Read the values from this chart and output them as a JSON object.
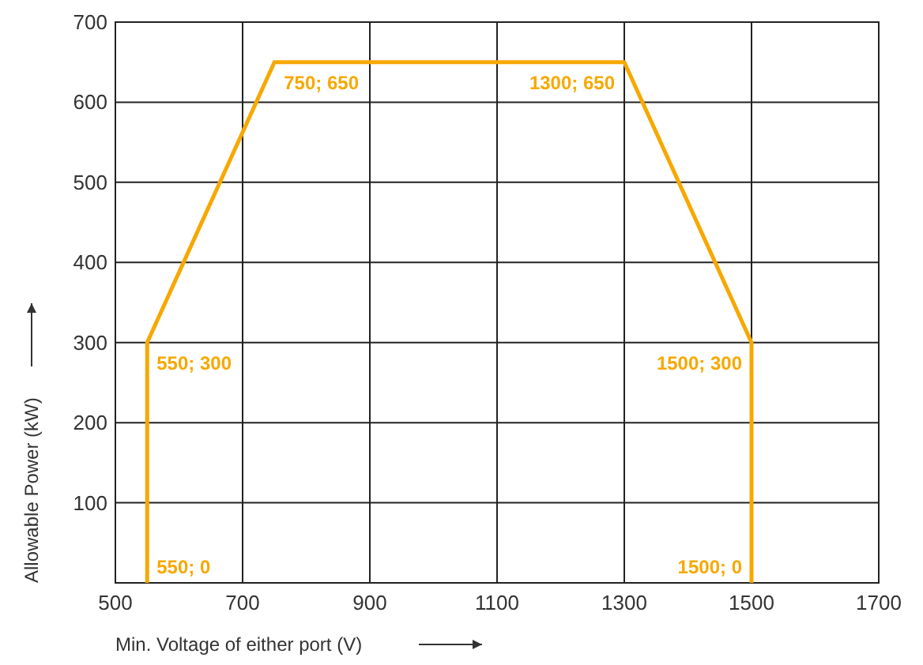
{
  "chart_data": {
    "type": "line",
    "xlabel": "Min. Voltage of either port (V)",
    "ylabel": "Allowable Power (kW)",
    "x": [
      550,
      550,
      750,
      1300,
      1500,
      1500
    ],
    "series": [
      {
        "color": "#f7a800",
        "values": [
          0,
          300,
          650,
          650,
          300,
          0
        ]
      }
    ],
    "xlim": [
      500,
      1700
    ],
    "xticks": [
      500,
      700,
      900,
      1100,
      1300,
      1500,
      1700
    ],
    "ylim": [
      0,
      700
    ],
    "yticks": [
      {
        "value": 0,
        "label": null
      },
      100,
      200,
      300,
      400,
      500,
      600,
      700
    ],
    "grid": true,
    "marker": "none",
    "line_style": "solid",
    "annotations": [
      {
        "text": "550; 0",
        "x": 550,
        "y": 0
      },
      {
        "text": "550; 300",
        "x": 550,
        "y": 300
      },
      {
        "text": "750; 650",
        "x": 750,
        "y": 650
      },
      {
        "text": "1300; 650",
        "x": 1300,
        "y": 650
      },
      {
        "text": "1500; 300",
        "x": 1500,
        "y": 300
      },
      {
        "text": "1500; 0",
        "x": 1500,
        "y": 0
      }
    ]
  }
}
